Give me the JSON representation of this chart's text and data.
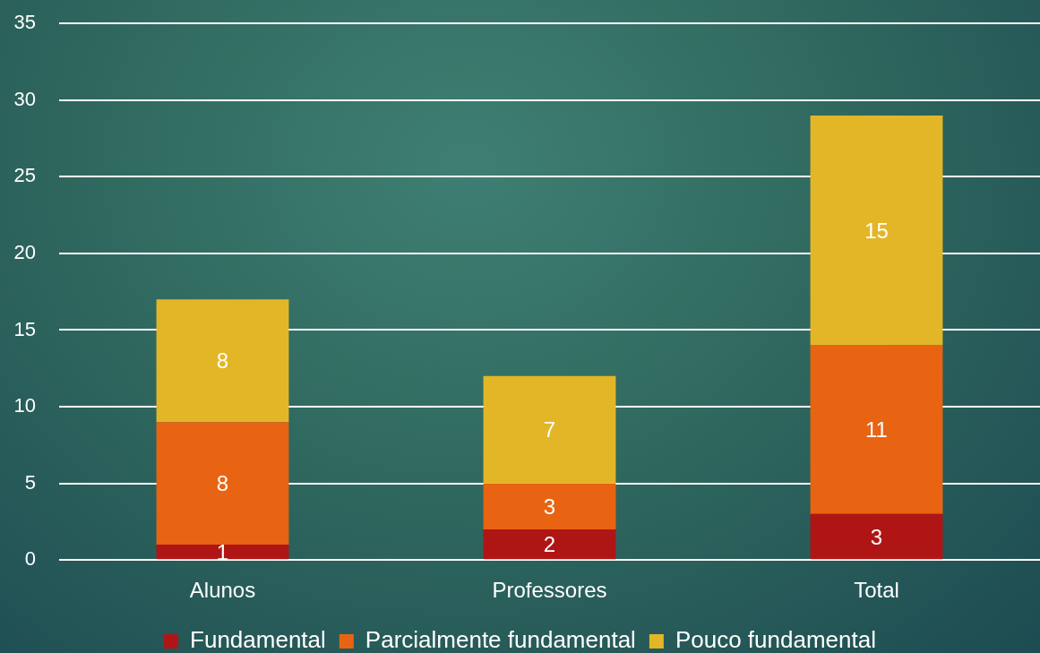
{
  "chart_data": {
    "type": "bar",
    "stacked": true,
    "categories": [
      "Alunos",
      "Professores",
      "Total"
    ],
    "series": [
      {
        "name": "Fundamental",
        "color": "#b01515",
        "values": [
          1,
          2,
          3
        ]
      },
      {
        "name": "Parcialmente fundamental",
        "color": "#e86412",
        "values": [
          8,
          3,
          11
        ]
      },
      {
        "name": "Pouco fundamental",
        "color": "#e3b628",
        "values": [
          8,
          7,
          15
        ]
      }
    ],
    "ylim": [
      0,
      35
    ],
    "yticks": [
      0,
      5,
      10,
      15,
      20,
      25,
      30,
      35
    ],
    "grid": "y",
    "legend": "bottom",
    "data_labels": true
  }
}
